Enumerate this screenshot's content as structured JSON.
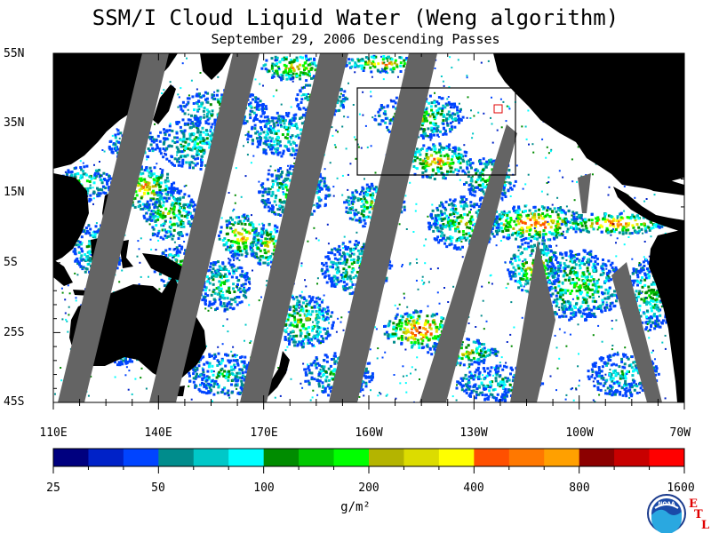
{
  "title": "SSM/I Cloud Liquid Water (Weng algorithm)",
  "subtitle": "September 29, 2006  Descending Passes",
  "lat_labels": [
    "55N",
    "35N",
    "15N",
    "5S",
    "25S",
    "45S"
  ],
  "lon_labels": [
    "110E",
    "140E",
    "170E",
    "160W",
    "130W",
    "100W",
    "70W"
  ],
  "colorbar": {
    "tick_labels": [
      "25",
      "50",
      "100",
      "200",
      "400",
      "800",
      "1600"
    ],
    "units": "g/m²",
    "colors": [
      "#00007f",
      "#0022c8",
      "#0044ff",
      "#008c8c",
      "#00c8c8",
      "#00ffff",
      "#008c00",
      "#00c800",
      "#00ff00",
      "#b4b400",
      "#dcdc00",
      "#ffff00",
      "#ff5000",
      "#ff7800",
      "#ffa000",
      "#8c0000",
      "#c80000",
      "#ff0000"
    ]
  },
  "logo": {
    "text": "NOAA",
    "lab_letters": [
      "E",
      "T",
      "L"
    ]
  }
}
